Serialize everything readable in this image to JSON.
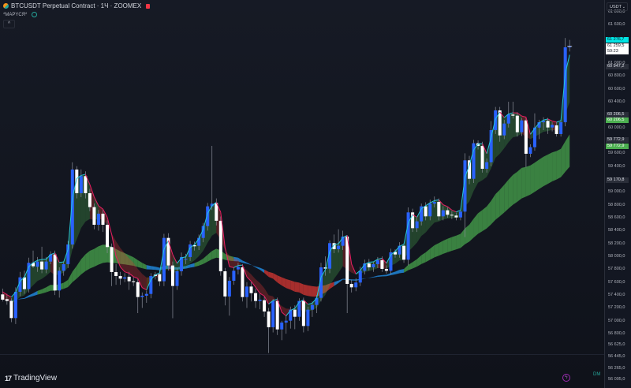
{
  "header": {
    "symbol_title": "BTCUSDT Perpetual Contract · 1Ч · ZOOMEX",
    "indicator_label": "*MAPYCЯ*",
    "collapse_label": "^"
  },
  "axis": {
    "currency_label": "USDT",
    "currency_chevron": "⌄",
    "ticks": [
      "61 800,0",
      "61 600,0",
      "61 000,0",
      "60 800,0",
      "60 600,0",
      "60 400,0",
      "60 000,0",
      "59 600,0",
      "59 400,0",
      "59 000,0",
      "58 800,0",
      "58 600,0",
      "58 400,0",
      "58 200,0",
      "58 000,0",
      "57 800,0",
      "57 600,0",
      "57 400,0",
      "57 200,0",
      "57 000,0",
      "56 800,0",
      "56 625,0",
      "56 445,0",
      "56 265,0",
      "56 095,0"
    ],
    "badges": {
      "high_price": "61 276,7",
      "last_price": "61 259,5",
      "countdown": "59:23",
      "level_1": "60 947,2",
      "level_2_gray": "60 206,5",
      "level_2_green": "60 206,5",
      "level_3_gray": "59 772,9",
      "level_3_green": "59 772,9",
      "level_4": "59 170,8"
    }
  },
  "footer": {
    "brand": "TradingView",
    "bolt_icon": "lightning-icon",
    "dm_label": "DM"
  },
  "colors": {
    "bull_candle": "#2962ff",
    "bear_candle": "#ffffff",
    "fast_up": "#26c6da",
    "fast_down": "#e91e63",
    "cloud_green": "#4caf50",
    "cloud_red": "#e53935",
    "band_blue": "#2196f3"
  },
  "chart_data": {
    "type": "candlestick",
    "symbol": "BTCUSDT",
    "interval": "1Ч",
    "ylim": [
      56095,
      61800
    ],
    "columns": [
      "open",
      "high",
      "low",
      "close"
    ],
    "candles": [
      [
        57410,
        57500,
        57300,
        57329
      ],
      [
        57337,
        57420,
        57250,
        57308
      ],
      [
        57308,
        57350,
        56980,
        57043
      ],
      [
        57043,
        57520,
        56950,
        57451
      ],
      [
        57451,
        57760,
        57380,
        57675
      ],
      [
        57675,
        57780,
        57420,
        57492
      ],
      [
        57492,
        57980,
        57440,
        57900
      ],
      [
        57900,
        58090,
        57820,
        57847
      ],
      [
        57839,
        57990,
        57760,
        57920
      ],
      [
        57920,
        58150,
        57740,
        57798
      ],
      [
        57798,
        57990,
        57740,
        57920
      ],
      [
        57920,
        58080,
        57880,
        58030
      ],
      [
        58030,
        58090,
        57400,
        57471
      ],
      [
        57471,
        57830,
        57360,
        57777
      ],
      [
        57777,
        57920,
        57700,
        57879
      ],
      [
        57879,
        58240,
        57820,
        58185
      ],
      [
        58185,
        59460,
        58120,
        59348
      ],
      [
        59348,
        59400,
        58900,
        58981
      ],
      [
        58981,
        59350,
        58920,
        59246
      ],
      [
        59246,
        59320,
        58900,
        58981
      ],
      [
        58981,
        59050,
        58700,
        58765
      ],
      [
        58765,
        58820,
        58420,
        58491
      ],
      [
        58491,
        58720,
        58400,
        58663
      ],
      [
        58663,
        58720,
        58380,
        58491
      ],
      [
        58491,
        58560,
        58050,
        58145
      ],
      [
        58145,
        58200,
        57540,
        57757
      ],
      [
        57757,
        57880,
        57560,
        57696
      ],
      [
        57696,
        57760,
        57560,
        57655
      ],
      [
        57655,
        57740,
        57600,
        57675
      ],
      [
        57684,
        57760,
        57480,
        57614
      ],
      [
        57614,
        57680,
        57540,
        57600
      ],
      [
        57600,
        57660,
        57120,
        57369
      ],
      [
        57369,
        57440,
        57200,
        57390
      ],
      [
        57390,
        57470,
        57280,
        57418
      ],
      [
        57418,
        57740,
        57350,
        57696
      ],
      [
        57716,
        57760,
        57640,
        57696
      ],
      [
        57724,
        57790,
        57540,
        57614
      ],
      [
        57614,
        58350,
        57540,
        58287
      ],
      [
        58287,
        58360,
        57780,
        57859
      ],
      [
        57859,
        57920,
        57040,
        57541
      ],
      [
        57541,
        57820,
        57480,
        57769
      ],
      [
        57769,
        58060,
        57700,
        57990
      ],
      [
        57949,
        58040,
        57880,
        57961
      ],
      [
        57990,
        58240,
        57930,
        58185
      ],
      [
        58173,
        58230,
        58090,
        58157
      ],
      [
        58165,
        58340,
        58100,
        58287
      ],
      [
        58287,
        58520,
        58220,
        58471
      ],
      [
        58471,
        58830,
        58400,
        58777
      ],
      [
        58777,
        59715,
        58720,
        58818
      ],
      [
        58830,
        58900,
        58480,
        58553
      ],
      [
        58553,
        58620,
        57700,
        57769
      ],
      [
        57769,
        57820,
        57240,
        57378
      ],
      [
        57378,
        57680,
        57080,
        57622
      ],
      [
        57622,
        57830,
        57560,
        57777
      ],
      [
        57798,
        57900,
        57720,
        57838
      ],
      [
        57830,
        57880,
        57300,
        57369
      ],
      [
        57369,
        57600,
        57200,
        57532
      ],
      [
        57532,
        57600,
        57300,
        57430
      ],
      [
        57430,
        57500,
        57200,
        57308
      ],
      [
        57308,
        57420,
        57180,
        57328
      ],
      [
        57320,
        57380,
        57060,
        57145
      ],
      [
        57145,
        57200,
        56500,
        56900
      ],
      [
        56900,
        57340,
        56820,
        57308
      ],
      [
        57308,
        57360,
        56780,
        56867
      ],
      [
        56867,
        57000,
        56700,
        56973
      ],
      [
        56973,
        57080,
        56800,
        57002
      ],
      [
        57002,
        57220,
        56880,
        57173
      ],
      [
        57173,
        57240,
        56870,
        57063
      ],
      [
        57063,
        57350,
        57000,
        57308
      ],
      [
        57308,
        57360,
        56820,
        56920
      ],
      [
        56920,
        57220,
        56840,
        57173
      ],
      [
        57173,
        57300,
        57060,
        57247
      ],
      [
        57247,
        57400,
        57120,
        57357
      ],
      [
        57357,
        57900,
        57300,
        57830
      ],
      [
        57830,
        58000,
        57700,
        57810
      ],
      [
        57810,
        58250,
        57740,
        58206
      ],
      [
        58206,
        58340,
        58050,
        58112
      ],
      [
        58112,
        58420,
        58060,
        58165
      ],
      [
        58165,
        58400,
        58100,
        58308
      ],
      [
        58308,
        58330,
        57120,
        57573
      ],
      [
        57573,
        57640,
        57440,
        57520
      ],
      [
        57520,
        57660,
        57460,
        57594
      ],
      [
        57594,
        57840,
        57540,
        57777
      ],
      [
        57777,
        57950,
        57720,
        57891
      ],
      [
        57891,
        57960,
        57780,
        57830
      ],
      [
        57830,
        57920,
        57760,
        57879
      ],
      [
        57879,
        57990,
        57820,
        57940
      ],
      [
        57940,
        58000,
        57760,
        57806
      ],
      [
        57806,
        57860,
        57730,
        57777
      ],
      [
        57777,
        58120,
        57720,
        58063
      ],
      [
        58071,
        58110,
        57980,
        58030
      ],
      [
        58030,
        58220,
        57980,
        58165
      ],
      [
        58165,
        58200,
        57900,
        57949
      ],
      [
        57949,
        58760,
        57860,
        58683
      ],
      [
        58683,
        58740,
        58380,
        58438
      ],
      [
        58438,
        58600,
        58380,
        58544
      ],
      [
        58544,
        58820,
        58480,
        58777
      ],
      [
        58777,
        58840,
        58560,
        58622
      ],
      [
        58622,
        58880,
        58560,
        58818
      ],
      [
        58818,
        58930,
        58760,
        58846
      ],
      [
        58846,
        58900,
        58560,
        58622
      ],
      [
        58622,
        58780,
        58560,
        58716
      ],
      [
        58716,
        58760,
        58600,
        58646
      ],
      [
        58646,
        58700,
        58580,
        58634
      ],
      [
        58634,
        58680,
        58560,
        58605
      ],
      [
        58605,
        58740,
        58560,
        58695
      ],
      [
        58695,
        59600,
        58300,
        59491
      ],
      [
        59491,
        59560,
        59120,
        59205
      ],
      [
        59205,
        59810,
        59140,
        59756
      ],
      [
        59756,
        59800,
        59660,
        59715
      ],
      [
        59715,
        59780,
        59300,
        59360
      ],
      [
        59360,
        59520,
        59300,
        59462
      ],
      [
        59462,
        60100,
        59400,
        59960
      ],
      [
        59960,
        60320,
        59900,
        60266
      ],
      [
        60266,
        60320,
        59780,
        59878
      ],
      [
        59878,
        60120,
        59820,
        60062
      ],
      [
        60062,
        60400,
        60000,
        60205
      ],
      [
        60201,
        60400,
        60140,
        60184
      ],
      [
        60184,
        60240,
        59860,
        59927
      ],
      [
        59927,
        60150,
        59870,
        60111
      ],
      [
        60111,
        60160,
        59380,
        59593
      ],
      [
        59593,
        59740,
        59540,
        59695
      ],
      [
        59695,
        60220,
        59640,
        59999
      ],
      [
        59999,
        60120,
        59820,
        60082
      ],
      [
        60082,
        60160,
        59960,
        60103
      ],
      [
        60103,
        60150,
        59900,
        60001
      ],
      [
        60001,
        60080,
        59940,
        60042
      ],
      [
        60034,
        60090,
        59860,
        59899
      ],
      [
        59899,
        60120,
        59860,
        60082
      ],
      [
        60082,
        61390,
        60020,
        61245
      ],
      [
        61245,
        61360,
        61180,
        61259.5
      ]
    ]
  }
}
